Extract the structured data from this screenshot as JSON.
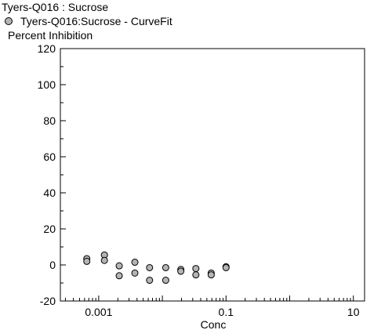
{
  "chart_data": {
    "type": "scatter",
    "title": "Tyers-Q016  : Sucrose",
    "ylabel": "Percent Inhibition",
    "xlabel": "Conc",
    "x_scale": "log",
    "xlim": [
      0.00025,
      15
    ],
    "ylim": [
      -20,
      120
    ],
    "x_ticks": [
      0.001,
      0.1,
      10
    ],
    "x_tick_labels": [
      "0.001",
      "0.1",
      "10"
    ],
    "y_ticks": [
      -20,
      0,
      20,
      40,
      60,
      80,
      100,
      120
    ],
    "y_tick_labels": [
      "-20",
      "0",
      "20",
      "40",
      "60",
      "80",
      "100",
      "120"
    ],
    "grid": false,
    "legend_position": "top-left",
    "series": [
      {
        "name": "Tyers-Q016:Sucrose - CurveFit",
        "color": "#b4b4b4",
        "points": [
          {
            "x": 0.00065,
            "y": 3.5
          },
          {
            "x": 0.00065,
            "y": 2.0
          },
          {
            "x": 0.00123,
            "y": 5.5
          },
          {
            "x": 0.00123,
            "y": 2.5
          },
          {
            "x": 0.0021,
            "y": -0.5
          },
          {
            "x": 0.0021,
            "y": -6.0
          },
          {
            "x": 0.0037,
            "y": 1.5
          },
          {
            "x": 0.0037,
            "y": -4.5
          },
          {
            "x": 0.0063,
            "y": -1.5
          },
          {
            "x": 0.0063,
            "y": -8.5
          },
          {
            "x": 0.0113,
            "y": -1.5
          },
          {
            "x": 0.0113,
            "y": -8.5
          },
          {
            "x": 0.0195,
            "y": -2.5
          },
          {
            "x": 0.0195,
            "y": -3.5
          },
          {
            "x": 0.0336,
            "y": -2.0
          },
          {
            "x": 0.0336,
            "y": -5.5
          },
          {
            "x": 0.0585,
            "y": -4.5
          },
          {
            "x": 0.0585,
            "y": -5.5
          },
          {
            "x": 0.1,
            "y": -1.0
          },
          {
            "x": 0.1,
            "y": -1.5
          }
        ]
      }
    ]
  }
}
